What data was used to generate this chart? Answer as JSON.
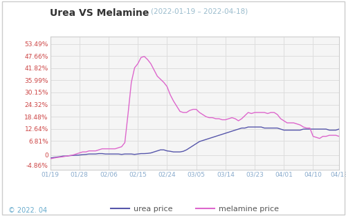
{
  "title": "Urea VS Melamine",
  "subtitle": "(2022-01-19 – 2022-04-18)",
  "footer": "© 2022. 04",
  "bg_color": "#ffffff",
  "plot_bg_color": "#f5f5f5",
  "grid_color": "#dddddd",
  "yticks": [
    -4.86,
    0,
    6.81,
    12.64,
    18.48,
    24.32,
    30.15,
    35.99,
    41.82,
    47.66,
    53.49
  ],
  "ytick_labels": [
    "-4.86%",
    "0",
    "6.81%",
    "12.64%",
    "18.48%",
    "24.32%",
    "30.15%",
    "35.99%",
    "41.82%",
    "47.66%",
    "53.49%"
  ],
  "xtick_labels": [
    "01/19",
    "01/28",
    "02/06",
    "02/15",
    "02/24",
    "03/05",
    "03/14",
    "03/23",
    "04/01",
    "04/10",
    "04/18"
  ],
  "urea_color": "#5555aa",
  "melamine_color": "#dd66cc",
  "title_color": "#333333",
  "subtitle_color": "#99bbcc",
  "ytick_color": "#cc4444",
  "xtick_color": "#88aacc",
  "footer_color": "#66aacc",
  "urea_x": [
    0,
    1,
    2,
    3,
    4,
    5,
    6,
    7,
    8,
    9,
    10,
    11,
    12,
    13,
    14,
    15,
    16,
    17,
    18,
    19,
    20,
    21,
    22,
    23,
    24,
    25,
    26,
    27,
    28,
    29,
    30,
    31,
    32,
    33,
    34,
    35,
    36,
    37,
    38,
    39,
    40,
    41,
    42,
    43,
    44,
    45,
    46,
    47,
    48,
    49,
    50,
    51,
    52,
    53,
    54,
    55,
    56,
    57,
    58,
    59,
    60,
    61,
    62,
    63,
    64,
    65,
    66,
    67,
    68,
    69,
    70,
    71,
    72,
    73,
    74,
    75,
    76,
    77,
    78,
    79,
    80,
    81,
    82,
    83,
    84,
    85,
    86,
    87,
    88,
    89
  ],
  "urea_y": [
    -1.5,
    -1.2,
    -1.0,
    -0.8,
    -0.5,
    -0.5,
    -0.3,
    -0.2,
    -0.1,
    0.0,
    0.2,
    0.3,
    0.5,
    0.5,
    0.5,
    0.7,
    0.7,
    0.5,
    0.5,
    0.5,
    0.5,
    0.5,
    0.3,
    0.5,
    0.5,
    0.5,
    0.3,
    0.5,
    0.7,
    0.7,
    0.8,
    1.0,
    1.5,
    2.0,
    2.5,
    2.5,
    2.0,
    1.8,
    1.5,
    1.5,
    1.5,
    1.8,
    2.5,
    3.5,
    4.5,
    5.5,
    6.5,
    7.0,
    7.5,
    8.0,
    8.5,
    9.0,
    9.5,
    10.0,
    10.5,
    11.0,
    11.5,
    12.0,
    12.5,
    13.0,
    13.0,
    13.5,
    13.5,
    13.5,
    13.5,
    13.5,
    13.0,
    13.0,
    13.0,
    13.0,
    13.0,
    12.5,
    12.0,
    12.0,
    12.0,
    12.0,
    12.0,
    12.0,
    12.5,
    12.5,
    12.5,
    12.5,
    12.5,
    12.5,
    12.5,
    12.5,
    12.0,
    12.0,
    12.0,
    12.5
  ],
  "melamine_y": [
    -1.8,
    -1.5,
    -1.2,
    -1.0,
    -0.8,
    -0.5,
    -0.3,
    0.0,
    0.5,
    1.0,
    1.5,
    1.5,
    2.0,
    2.0,
    2.0,
    2.5,
    3.0,
    3.0,
    3.0,
    3.0,
    3.0,
    3.5,
    4.0,
    6.0,
    20.0,
    35.0,
    42.0,
    44.0,
    47.0,
    47.5,
    46.0,
    44.0,
    41.0,
    38.0,
    36.5,
    35.0,
    33.0,
    29.0,
    26.0,
    23.5,
    21.0,
    20.5,
    20.5,
    21.5,
    22.0,
    22.0,
    20.5,
    19.5,
    18.5,
    18.0,
    18.0,
    17.5,
    17.5,
    17.0,
    17.0,
    17.5,
    18.0,
    17.5,
    16.5,
    17.5,
    19.0,
    20.5,
    20.0,
    20.5,
    20.5,
    20.5,
    20.5,
    20.0,
    20.5,
    20.5,
    19.5,
    17.5,
    16.5,
    15.5,
    15.5,
    15.5,
    15.0,
    14.5,
    13.5,
    13.0,
    13.0,
    9.0,
    8.5,
    8.0,
    9.0,
    9.0,
    9.5,
    9.5,
    9.5,
    9.0
  ]
}
